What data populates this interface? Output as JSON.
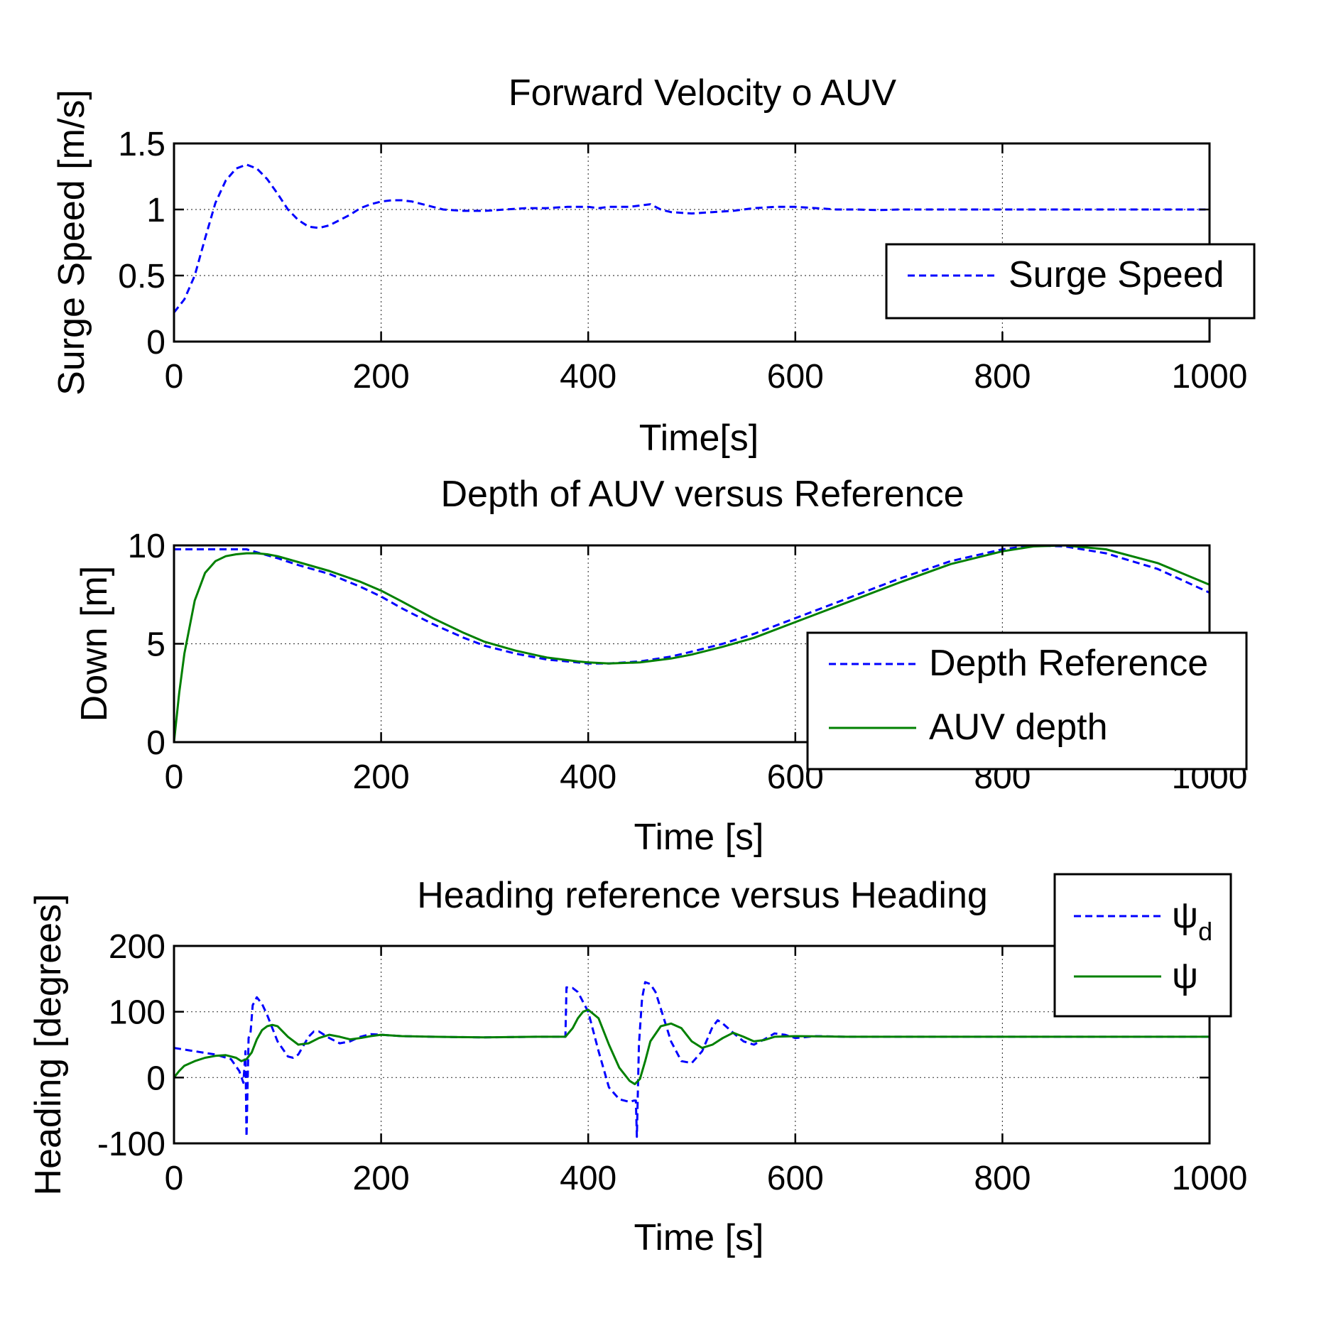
{
  "chart_data": [
    {
      "type": "line",
      "title": "Forward Velocity o AUV",
      "xlabel": "Time[s]",
      "ylabel": "Surge Speed [m/s]",
      "xlim": [
        0,
        1000
      ],
      "ylim": [
        0,
        1.5
      ],
      "xticks": [
        0,
        200,
        400,
        600,
        800,
        1000
      ],
      "yticks": [
        0,
        0.5,
        1,
        1.5
      ],
      "grid": true,
      "legend_position": "right",
      "series": [
        {
          "name": "Surge Speed",
          "color": "#0000ff",
          "style": "dashed",
          "x": [
            0,
            10,
            20,
            30,
            40,
            50,
            60,
            70,
            80,
            90,
            100,
            110,
            120,
            130,
            140,
            150,
            160,
            170,
            180,
            190,
            200,
            210,
            220,
            230,
            240,
            250,
            260,
            280,
            300,
            320,
            340,
            360,
            380,
            400,
            410,
            420,
            440,
            460,
            470,
            480,
            500,
            520,
            540,
            560,
            580,
            600,
            620,
            640,
            660,
            680,
            700,
            750,
            800,
            850,
            900,
            950,
            1000
          ],
          "y": [
            0.22,
            0.32,
            0.5,
            0.78,
            1.05,
            1.22,
            1.31,
            1.34,
            1.31,
            1.23,
            1.12,
            1.0,
            0.92,
            0.87,
            0.86,
            0.88,
            0.92,
            0.96,
            1.01,
            1.04,
            1.06,
            1.07,
            1.07,
            1.06,
            1.04,
            1.02,
            1.0,
            0.99,
            0.99,
            1.0,
            1.01,
            1.01,
            1.02,
            1.02,
            1.01,
            1.02,
            1.02,
            1.04,
            1.0,
            0.98,
            0.97,
            0.98,
            0.99,
            1.01,
            1.02,
            1.02,
            1.01,
            1.0,
            1.0,
            0.995,
            1.0,
            1.0,
            1.0,
            1.0,
            1.0,
            1.0,
            1.0
          ]
        }
      ]
    },
    {
      "type": "line",
      "title": "Depth of AUV versus Reference",
      "xlabel": "Time [s]",
      "ylabel": "Down [m]",
      "xlim": [
        0,
        1000
      ],
      "ylim": [
        0,
        10
      ],
      "xticks": [
        0,
        200,
        400,
        600,
        800,
        1000
      ],
      "yticks": [
        0,
        5,
        10
      ],
      "grid": true,
      "legend_position": "right",
      "series": [
        {
          "name": "Depth Reference",
          "color": "#0000ff",
          "style": "dashed",
          "x": [
            0,
            20,
            40,
            60,
            70,
            80,
            100,
            120,
            150,
            180,
            200,
            220,
            250,
            280,
            300,
            330,
            360,
            390,
            400,
            420,
            450,
            480,
            500,
            530,
            560,
            600,
            650,
            700,
            750,
            800,
            830,
            860,
            900,
            950,
            1000
          ],
          "y": [
            9.8,
            9.8,
            9.8,
            9.8,
            9.8,
            9.65,
            9.35,
            9.0,
            8.55,
            7.9,
            7.4,
            6.8,
            6.0,
            5.3,
            4.9,
            4.5,
            4.2,
            4.05,
            4.0,
            4.0,
            4.1,
            4.35,
            4.6,
            5.0,
            5.5,
            6.3,
            7.3,
            8.3,
            9.2,
            9.8,
            10.0,
            9.95,
            9.6,
            8.8,
            7.6
          ]
        },
        {
          "name": "AUV depth",
          "color": "#008000",
          "style": "solid",
          "x": [
            0,
            5,
            10,
            20,
            30,
            40,
            50,
            60,
            70,
            80,
            90,
            100,
            120,
            150,
            180,
            200,
            220,
            250,
            280,
            300,
            330,
            360,
            390,
            400,
            420,
            450,
            480,
            500,
            530,
            560,
            600,
            650,
            700,
            750,
            800,
            830,
            860,
            900,
            950,
            1000
          ],
          "y": [
            0,
            2.5,
            4.5,
            7.2,
            8.6,
            9.2,
            9.45,
            9.55,
            9.6,
            9.6,
            9.55,
            9.45,
            9.15,
            8.7,
            8.15,
            7.7,
            7.15,
            6.3,
            5.55,
            5.1,
            4.65,
            4.3,
            4.1,
            4.05,
            4.0,
            4.05,
            4.25,
            4.45,
            4.85,
            5.3,
            6.1,
            7.1,
            8.1,
            9.05,
            9.7,
            9.95,
            10.0,
            9.8,
            9.1,
            8.0
          ]
        }
      ]
    },
    {
      "type": "line",
      "title": "Heading reference versus Heading",
      "xlabel": "Time [s]",
      "ylabel": "Heading [degrees]",
      "xlim": [
        0,
        1000
      ],
      "ylim": [
        -100,
        200
      ],
      "xticks": [
        0,
        200,
        400,
        600,
        800,
        1000
      ],
      "yticks": [
        -100,
        0,
        100,
        200
      ],
      "grid": true,
      "legend_position": "top-right",
      "series": [
        {
          "name": "ψ_d",
          "legend_main": "ψ",
          "legend_sub": "d",
          "color": "#0000ff",
          "style": "dashed",
          "x": [
            0,
            20,
            40,
            55,
            63,
            67,
            69,
            70,
            72,
            74,
            76,
            80,
            85,
            90,
            100,
            110,
            115,
            120,
            130,
            135,
            140,
            150,
            160,
            170,
            180,
            190,
            200,
            220,
            250,
            300,
            350,
            378,
            379,
            385,
            390,
            400,
            410,
            420,
            430,
            440,
            444,
            446,
            447,
            449,
            452,
            455,
            460,
            465,
            470,
            480,
            490,
            500,
            510,
            520,
            525,
            530,
            540,
            550,
            560,
            570,
            580,
            590,
            600,
            620,
            650,
            700,
            800,
            900,
            1000
          ],
          "y": [
            45,
            40,
            35,
            28,
            10,
            -8,
            40,
            -90,
            60,
            70,
            110,
            122,
            112,
            95,
            55,
            32,
            30,
            35,
            62,
            70,
            70,
            60,
            52,
            55,
            62,
            66,
            65,
            63,
            62,
            61,
            62,
            62,
            137,
            136,
            130,
            100,
            40,
            -15,
            -33,
            -37,
            -35,
            -35,
            -90,
            50,
            120,
            145,
            142,
            130,
            105,
            55,
            25,
            22,
            40,
            77,
            87,
            82,
            68,
            55,
            50,
            58,
            67,
            65,
            60,
            63,
            62,
            62,
            62,
            62,
            62
          ]
        },
        {
          "name": "ψ",
          "legend_main": "ψ",
          "legend_sub": "",
          "color": "#008000",
          "style": "solid",
          "x": [
            0,
            5,
            10,
            20,
            30,
            40,
            50,
            60,
            65,
            70,
            75,
            80,
            85,
            90,
            95,
            100,
            110,
            120,
            130,
            140,
            150,
            160,
            170,
            180,
            190,
            200,
            220,
            250,
            300,
            350,
            378,
            385,
            390,
            395,
            400,
            410,
            420,
            430,
            440,
            445,
            450,
            455,
            460,
            470,
            480,
            490,
            500,
            510,
            520,
            530,
            540,
            550,
            560,
            570,
            580,
            600,
            650,
            700,
            800,
            900,
            1000
          ],
          "y": [
            0,
            10,
            18,
            25,
            30,
            33,
            34,
            30,
            25,
            28,
            38,
            58,
            72,
            78,
            80,
            78,
            62,
            50,
            52,
            60,
            65,
            62,
            58,
            60,
            63,
            65,
            63,
            62,
            61,
            62,
            62,
            75,
            90,
            100,
            103,
            90,
            50,
            15,
            -5,
            -10,
            -2,
            25,
            55,
            78,
            82,
            75,
            55,
            45,
            50,
            60,
            68,
            62,
            55,
            57,
            62,
            63,
            62,
            62,
            62,
            62,
            62
          ]
        }
      ]
    }
  ]
}
